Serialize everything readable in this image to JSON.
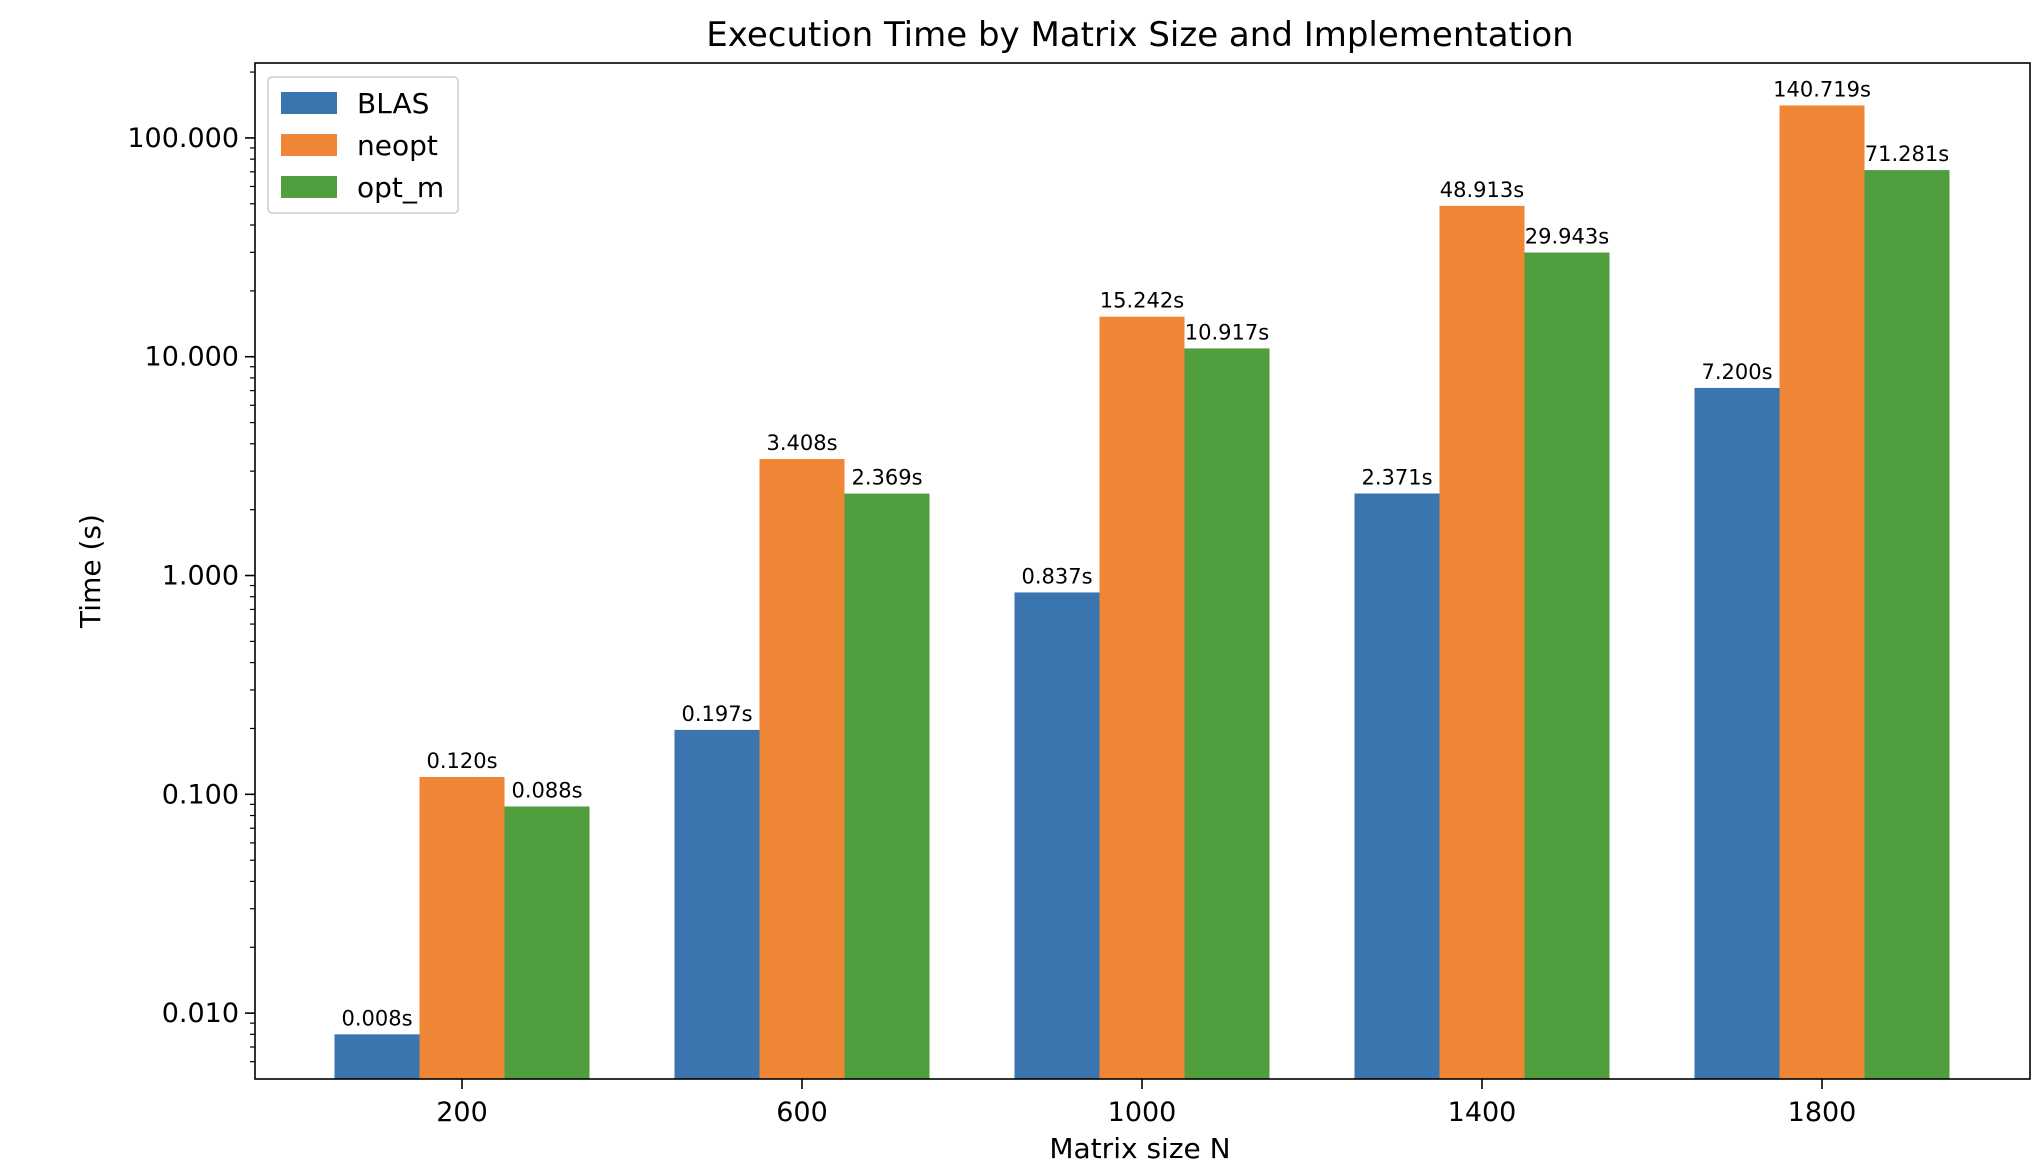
{
  "chart_data": {
    "type": "bar",
    "title": "Execution Time by Matrix Size and Implementation",
    "xlabel": "Matrix size N",
    "ylabel": "Time (s)",
    "yscale": "log",
    "ylim": [
      0.005,
      220
    ],
    "yticks": [
      0.01,
      0.1,
      1,
      10,
      100
    ],
    "ytick_labels": [
      "0.010",
      "0.100",
      "1.000",
      "10.000",
      "100.000"
    ],
    "categories": [
      "200",
      "600",
      "1000",
      "1400",
      "1800"
    ],
    "series": [
      {
        "name": "BLAS",
        "color": "#3a75b0",
        "values": [
          0.008,
          0.197,
          0.837,
          2.371,
          7.2
        ],
        "labels": [
          "0.008s",
          "0.197s",
          "0.837s",
          "2.371s",
          "7.200s"
        ]
      },
      {
        "name": "neopt",
        "color": "#ef8636",
        "values": [
          0.12,
          3.408,
          15.242,
          48.913,
          140.719
        ],
        "labels": [
          "0.120s",
          "3.408s",
          "15.242s",
          "48.913s",
          "140.719s"
        ]
      },
      {
        "name": "opt_m",
        "color": "#519e3e",
        "values": [
          0.088,
          2.369,
          10.917,
          29.943,
          71.281
        ],
        "labels": [
          "0.088s",
          "2.369s",
          "10.917s",
          "29.943s",
          "71.281s"
        ]
      }
    ],
    "legend_position": "top-left",
    "grid": false
  }
}
